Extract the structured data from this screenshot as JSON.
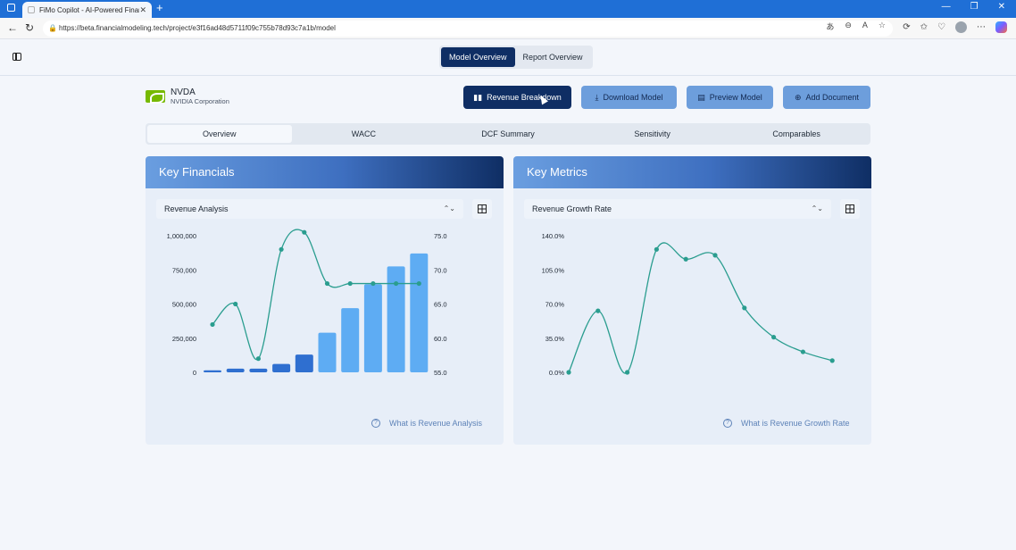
{
  "browser": {
    "tab_title": "FiMo Copilot - AI-Powered Financ",
    "url": "https://beta.financialmodeling.tech/project/e3f16ad48d5711f09c755b78d93c7a1b/model"
  },
  "header": {
    "tabs": [
      {
        "label": "Model Overview",
        "active": true
      },
      {
        "label": "Report Overview",
        "active": false
      }
    ]
  },
  "company": {
    "ticker": "NVDA",
    "name": "NVIDIA Corporation"
  },
  "actions": {
    "revenue_breakdown": "Revenue Breakdown",
    "download_model": "Download Model",
    "preview_model": "Preview Model",
    "add_document": "Add Document"
  },
  "subtabs": [
    "Overview",
    "WACC",
    "DCF Summary",
    "Sensitivity",
    "Comparables"
  ],
  "key_financials": {
    "title": "Key Financials",
    "selector": "Revenue Analysis",
    "help": "What is Revenue Analysis"
  },
  "key_metrics": {
    "title": "Key Metrics",
    "selector": "Revenue Growth Rate",
    "help": "What is Revenue Growth Rate"
  },
  "chart_data": [
    {
      "type": "bar",
      "left_ticks": [
        "1,000,000",
        "750,000",
        "500,000",
        "250,000",
        "0"
      ],
      "right_ticks": [
        "75.0",
        "70.0",
        "65.0",
        "60.0",
        "55.0"
      ],
      "ylim": [
        0,
        1000000
      ],
      "y2lim": [
        55,
        75
      ],
      "series": [
        {
          "values": [
            15000,
            27000,
            27000,
            61000,
            130000,
            290000,
            470000,
            645000,
            775000,
            870000
          ]
        },
        {
          "values": [
            62,
            65,
            57,
            73,
            75.5,
            68,
            68,
            68,
            68,
            68
          ]
        }
      ],
      "bar_colors": [
        "#2f6fd0",
        "#2f6fd0",
        "#2f6fd0",
        "#2f6fd0",
        "#2f6fd0",
        "#5eacf3",
        "#5eacf3",
        "#5eacf3",
        "#5eacf3",
        "#5eacf3"
      ]
    },
    {
      "type": "line",
      "y_ticks": [
        "140.0%",
        "105.0%",
        "70.0%",
        "35.0%",
        "0.0%"
      ],
      "ylim": [
        0,
        140
      ],
      "series": [
        {
          "values": [
            0,
            63,
            0,
            126,
            116,
            120,
            66,
            36,
            21,
            12
          ]
        }
      ]
    }
  ],
  "colors": {
    "navy": "#0f2e64",
    "teal": "#2a9d8f",
    "accent": "#6d9edc"
  }
}
